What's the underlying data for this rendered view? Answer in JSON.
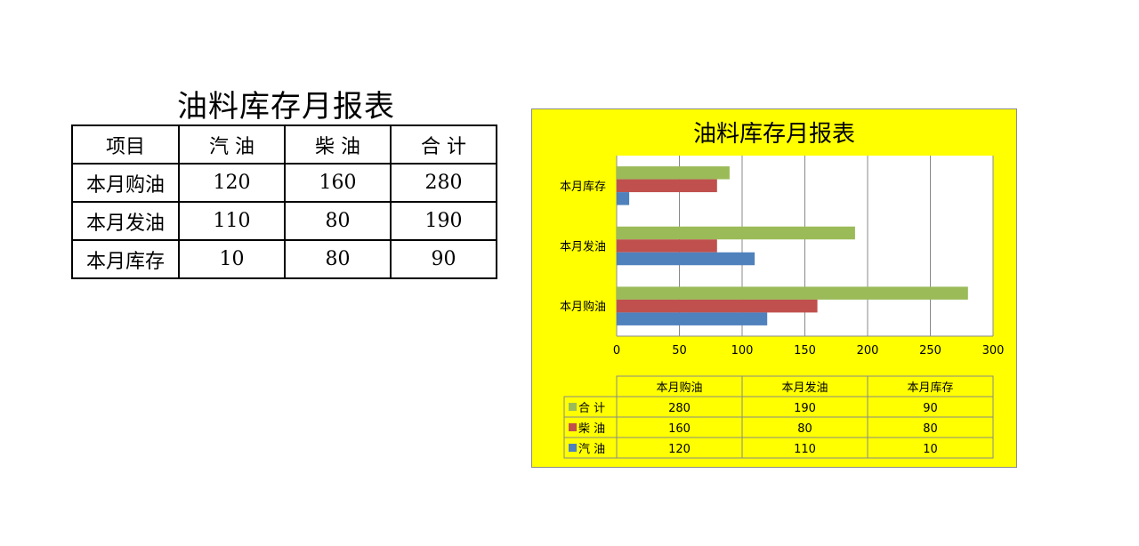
{
  "table": {
    "title": "油料库存月报表",
    "headers": [
      "项目",
      "汽 油",
      "柴 油",
      "合 计"
    ],
    "rows": [
      [
        "本月购油",
        "120",
        "160",
        "280"
      ],
      [
        "本月发油",
        "110",
        "80",
        "190"
      ],
      [
        "本月库存",
        "10",
        "80",
        "90"
      ]
    ]
  },
  "chart_data": {
    "type": "bar",
    "orientation": "horizontal",
    "title": "油料库存月报表",
    "categories": [
      "本月购油",
      "本月发油",
      "本月库存"
    ],
    "series": [
      {
        "name": "汽 油",
        "values": [
          120,
          110,
          10
        ],
        "color": "#4f81bd"
      },
      {
        "name": "柴 油",
        "values": [
          160,
          80,
          80
        ],
        "color": "#c0504d"
      },
      {
        "name": "合 计",
        "values": [
          280,
          190,
          90
        ],
        "color": "#9bbb59"
      }
    ],
    "xlim": [
      0,
      300
    ],
    "xticks": [
      0,
      50,
      100,
      150,
      200,
      250,
      300
    ],
    "grid": true,
    "legend": "data-table",
    "data_table_series_order": [
      "合 计",
      "柴 油",
      "汽 油"
    ],
    "background": "#ffff00",
    "plot_background": "#ffffff"
  }
}
